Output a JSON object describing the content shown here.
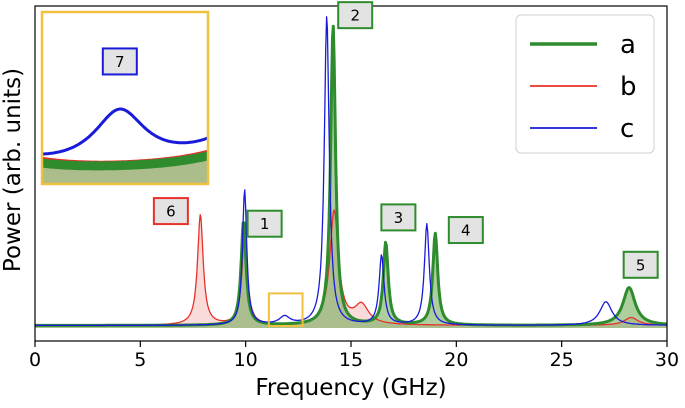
{
  "chart_data": {
    "type": "area",
    "title": "",
    "xlabel": "Frequency (GHz)",
    "ylabel": "Power (arb. units)",
    "xlim": [
      0,
      30
    ],
    "ylim": [
      0,
      1.0
    ],
    "x_ticks": [
      0,
      5,
      10,
      15,
      20,
      25,
      30
    ],
    "x_tick_labels": [
      "0",
      "5",
      "10",
      "15",
      "20",
      "25",
      "30"
    ],
    "y_ticks_shown": false,
    "grid": false,
    "legend": {
      "placement": "top-right",
      "entries": [
        "a",
        "b",
        "c"
      ]
    },
    "series": [
      {
        "name": "a",
        "color": "#2e8b2e",
        "fill": "#6aa84f",
        "peaks": [
          {
            "x": 9.9,
            "h": 0.33,
            "w": 0.14
          },
          {
            "x": 14.15,
            "h": 0.95,
            "w": 0.14
          },
          {
            "x": 16.65,
            "h": 0.26,
            "w": 0.14
          },
          {
            "x": 19.0,
            "h": 0.29,
            "w": 0.14
          },
          {
            "x": 28.2,
            "h": 0.12,
            "w": 0.35
          }
        ]
      },
      {
        "name": "b",
        "color": "#e8312a",
        "fill": "#f4b8b4",
        "peaks": [
          {
            "x": 7.85,
            "h": 0.35,
            "w": 0.16
          },
          {
            "x": 9.95,
            "h": 0.28,
            "w": 0.16
          },
          {
            "x": 14.2,
            "h": 0.36,
            "w": 0.25
          },
          {
            "x": 15.5,
            "h": 0.06,
            "w": 0.4
          },
          {
            "x": 28.3,
            "h": 0.025,
            "w": 0.4
          }
        ]
      },
      {
        "name": "c",
        "color": "#1a1adb",
        "fill": "none",
        "peaks": [
          {
            "x": 9.95,
            "h": 0.43,
            "w": 0.12
          },
          {
            "x": 11.85,
            "h": 0.025,
            "w": 0.3
          },
          {
            "x": 13.85,
            "h": 0.98,
            "w": 0.14
          },
          {
            "x": 16.45,
            "h": 0.22,
            "w": 0.14
          },
          {
            "x": 18.6,
            "h": 0.32,
            "w": 0.14
          },
          {
            "x": 27.1,
            "h": 0.075,
            "w": 0.35
          }
        ]
      }
    ],
    "annotations": [
      {
        "label": "1",
        "x": 10.9,
        "y": 0.33,
        "border": "#2e8b2e"
      },
      {
        "label": "2",
        "x": 15.2,
        "y": 0.99,
        "border": "#2e8b2e"
      },
      {
        "label": "3",
        "x": 17.25,
        "y": 0.35,
        "border": "#2e8b2e"
      },
      {
        "label": "4",
        "x": 20.45,
        "y": 0.31,
        "border": "#2e8b2e"
      },
      {
        "label": "5",
        "x": 28.75,
        "y": 0.2,
        "border": "#2e8b2e"
      },
      {
        "label": "6",
        "x": 6.45,
        "y": 0.37,
        "border": "#e8312a"
      },
      {
        "label": "7",
        "border": "#1a1adb"
      }
    ],
    "zoom_box": {
      "x_range": [
        11.1,
        12.7
      ],
      "y_range": [
        0.0,
        0.1
      ],
      "color": "#f0c040"
    }
  }
}
